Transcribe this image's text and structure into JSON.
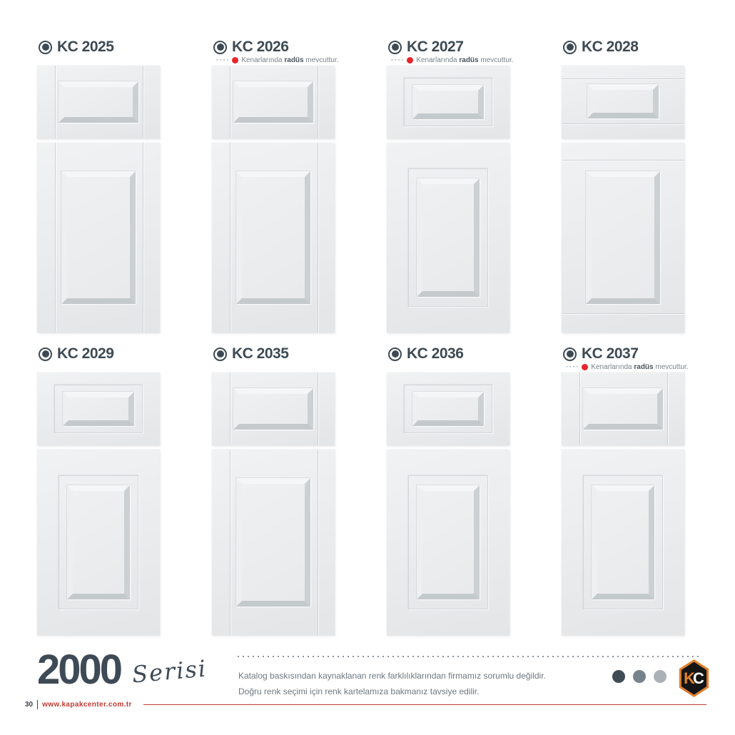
{
  "products": [
    {
      "code": "KC 2025",
      "has_note": false
    },
    {
      "code": "KC 2026",
      "has_note": true,
      "note_leader": "····",
      "note_pre": "Kenarlarında ",
      "note_bold": "radüs",
      "note_post": " mevcuttur."
    },
    {
      "code": "KC 2027",
      "has_note": true,
      "note_leader": "····",
      "note_pre": "Kenarlarında ",
      "note_bold": "radüs",
      "note_post": " mevcuttur."
    },
    {
      "code": "KC 2028",
      "has_note": false
    },
    {
      "code": "KC 2029",
      "has_note": false
    },
    {
      "code": "KC 2035",
      "has_note": false
    },
    {
      "code": "KC 2036",
      "has_note": false
    },
    {
      "code": "KC 2037",
      "has_note": true,
      "note_leader": "····",
      "note_pre": "Kenarlarında ",
      "note_bold": "radüs",
      "note_post": " mevcuttur."
    }
  ],
  "series": {
    "number": "2000",
    "word": "Serisi"
  },
  "disclaimer": {
    "line1": "Katalog baskısından kaynaklanan renk farklılıklarından firmamız sorumlu değildir.",
    "line2": "Doğru renk seçimi için renk kartelamıza bakmanız tavsiye edilir."
  },
  "pagination": {
    "dot_colors": [
      "#3f4b55",
      "#76828c",
      "#abb1b6"
    ]
  },
  "logo": {
    "k": "K",
    "c": "C",
    "orange": "#e0812f"
  },
  "footer": {
    "page_number": "30",
    "website": "www.kapakcenter.com.tr"
  },
  "colors": {
    "ink": "#3d4a54",
    "note_red": "#e8242c",
    "footer_red": "#c13a30"
  }
}
